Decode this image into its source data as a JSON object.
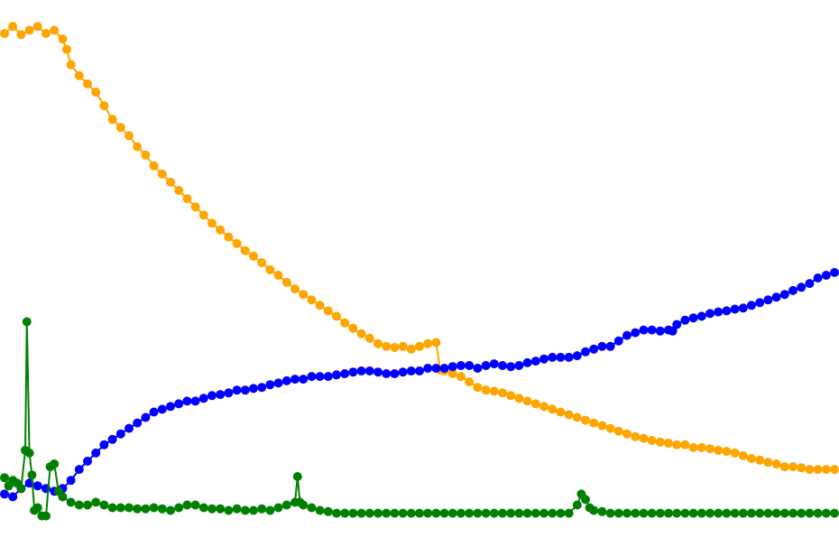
{
  "chart_data": {
    "type": "line",
    "title": "",
    "xlabel": "",
    "ylabel": "",
    "xlim": [
      0,
      100
    ],
    "ylim": [
      0,
      100
    ],
    "grid": false,
    "legend": "none",
    "marker": "circle",
    "series": [
      {
        "color": "#ffa500",
        "values": [
          [
            0,
            94.7
          ],
          [
            1,
            96.0
          ],
          [
            2,
            94.5
          ],
          [
            3,
            95.3
          ],
          [
            4,
            96.0
          ],
          [
            5,
            94.7
          ],
          [
            6,
            95.3
          ],
          [
            7,
            93.7
          ],
          [
            7.5,
            91.8
          ],
          [
            8,
            89.0
          ],
          [
            9,
            87.0
          ],
          [
            10,
            85.5
          ],
          [
            11,
            84.0
          ],
          [
            12,
            81.5
          ],
          [
            13,
            79.0
          ],
          [
            14,
            77.5
          ],
          [
            15,
            76.0
          ],
          [
            16,
            74.0
          ],
          [
            17,
            72.5
          ],
          [
            18,
            70.5
          ],
          [
            19,
            69.0
          ],
          [
            20,
            67.5
          ],
          [
            21,
            66.0
          ],
          [
            22,
            64.5
          ],
          [
            23,
            63.0
          ],
          [
            24,
            61.5
          ],
          [
            25,
            60.0
          ],
          [
            26,
            58.8
          ],
          [
            27,
            57.5
          ],
          [
            28,
            56.3
          ],
          [
            29,
            55.0
          ],
          [
            30,
            54.0
          ],
          [
            31,
            52.8
          ],
          [
            32,
            51.5
          ],
          [
            33,
            50.5
          ],
          [
            34,
            49.2
          ],
          [
            35,
            48.0
          ],
          [
            36,
            47.0
          ],
          [
            37,
            46.0
          ],
          [
            38,
            45.0
          ],
          [
            39,
            44.0
          ],
          [
            40,
            43.0
          ],
          [
            41,
            41.8
          ],
          [
            42,
            40.8
          ],
          [
            43,
            39.8
          ],
          [
            44,
            39.0
          ],
          [
            45,
            38.0
          ],
          [
            46,
            37.5
          ],
          [
            47,
            37.3
          ],
          [
            48,
            37.5
          ],
          [
            49,
            37.0
          ],
          [
            50,
            37.5
          ],
          [
            51,
            38.0
          ],
          [
            52,
            38.2
          ],
          [
            52.5,
            33.2
          ],
          [
            53,
            33.0
          ],
          [
            54,
            32.5
          ],
          [
            55,
            32.0
          ],
          [
            56,
            31.0
          ],
          [
            57,
            30.0
          ],
          [
            58,
            29.5
          ],
          [
            59,
            29.3
          ],
          [
            60,
            29.0
          ],
          [
            61,
            28.5
          ],
          [
            62,
            28.0
          ],
          [
            63,
            27.5
          ],
          [
            64,
            27.0
          ],
          [
            65,
            26.5
          ],
          [
            66,
            26.0
          ],
          [
            67,
            25.5
          ],
          [
            68,
            25.0
          ],
          [
            69,
            24.5
          ],
          [
            70,
            24.0
          ],
          [
            71,
            23.5
          ],
          [
            72,
            23.0
          ],
          [
            73,
            22.5
          ],
          [
            74,
            22.0
          ],
          [
            75,
            21.5
          ],
          [
            76,
            21.0
          ],
          [
            77,
            20.7
          ],
          [
            78,
            20.3
          ],
          [
            79,
            20.0
          ],
          [
            80,
            19.8
          ],
          [
            81,
            19.5
          ],
          [
            82,
            19.5
          ],
          [
            83,
            19.0
          ],
          [
            84,
            19.0
          ],
          [
            85,
            18.8
          ],
          [
            86,
            18.5
          ],
          [
            87,
            18.3
          ],
          [
            88,
            18.0
          ],
          [
            89,
            17.5
          ],
          [
            90,
            17.0
          ],
          [
            91,
            16.7
          ],
          [
            92,
            16.3
          ],
          [
            93,
            16.0
          ],
          [
            94,
            15.5
          ],
          [
            95,
            15.5
          ],
          [
            96,
            15.3
          ],
          [
            97,
            15.0
          ],
          [
            98,
            15.0
          ],
          [
            99,
            15.0
          ],
          [
            100,
            15.0
          ]
        ]
      },
      {
        "color": "#0000ff",
        "values": [
          [
            0,
            10.5
          ],
          [
            1,
            10.0
          ],
          [
            2,
            11.5
          ],
          [
            3,
            12.5
          ],
          [
            4,
            12.0
          ],
          [
            5,
            11.5
          ],
          [
            6,
            11.0
          ],
          [
            7,
            11.5
          ],
          [
            8,
            13.0
          ],
          [
            9,
            15.0
          ],
          [
            10,
            16.5
          ],
          [
            11,
            18.0
          ],
          [
            12,
            19.5
          ],
          [
            13,
            20.5
          ],
          [
            14,
            21.5
          ],
          [
            15,
            22.5
          ],
          [
            16,
            23.5
          ],
          [
            17,
            24.5
          ],
          [
            18,
            25.5
          ],
          [
            19,
            26.0
          ],
          [
            20,
            26.5
          ],
          [
            21,
            27.0
          ],
          [
            22,
            27.5
          ],
          [
            23,
            27.5
          ],
          [
            24,
            28.0
          ],
          [
            25,
            28.5
          ],
          [
            26,
            28.7
          ],
          [
            27,
            29.0
          ],
          [
            28,
            29.5
          ],
          [
            29,
            29.5
          ],
          [
            30,
            29.8
          ],
          [
            31,
            30.0
          ],
          [
            32,
            30.5
          ],
          [
            33,
            30.8
          ],
          [
            34,
            31.2
          ],
          [
            35,
            31.5
          ],
          [
            36,
            31.5
          ],
          [
            37,
            32.0
          ],
          [
            38,
            32.0
          ],
          [
            39,
            32.0
          ],
          [
            40,
            32.3
          ],
          [
            41,
            32.5
          ],
          [
            42,
            32.8
          ],
          [
            43,
            33.0
          ],
          [
            44,
            33.0
          ],
          [
            45,
            32.8
          ],
          [
            46,
            32.5
          ],
          [
            47,
            32.5
          ],
          [
            48,
            32.8
          ],
          [
            49,
            33.0
          ],
          [
            50,
            33.0
          ],
          [
            51,
            33.5
          ],
          [
            52,
            33.5
          ],
          [
            53,
            33.5
          ],
          [
            54,
            33.8
          ],
          [
            55,
            34.0
          ],
          [
            56,
            34.0
          ],
          [
            57,
            33.5
          ],
          [
            58,
            34.0
          ],
          [
            59,
            34.3
          ],
          [
            60,
            34.0
          ],
          [
            61,
            33.8
          ],
          [
            62,
            34.0
          ],
          [
            63,
            34.5
          ],
          [
            64,
            34.8
          ],
          [
            65,
            35.2
          ],
          [
            66,
            35.5
          ],
          [
            67,
            35.5
          ],
          [
            68,
            35.5
          ],
          [
            69,
            35.8
          ],
          [
            70,
            36.5
          ],
          [
            71,
            37.0
          ],
          [
            72,
            37.5
          ],
          [
            73,
            37.5
          ],
          [
            74,
            38.5
          ],
          [
            75,
            39.5
          ],
          [
            76,
            40.0
          ],
          [
            77,
            40.5
          ],
          [
            78,
            40.5
          ],
          [
            79,
            40.3
          ],
          [
            80,
            40.5
          ],
          [
            80.5,
            40.3
          ],
          [
            81,
            41.5
          ],
          [
            82,
            42.3
          ],
          [
            83,
            42.7
          ],
          [
            84,
            43.0
          ],
          [
            85,
            43.5
          ],
          [
            86,
            43.8
          ],
          [
            87,
            44.0
          ],
          [
            88,
            44.3
          ],
          [
            89,
            44.5
          ],
          [
            90,
            45.0
          ],
          [
            91,
            45.5
          ],
          [
            92,
            46.0
          ],
          [
            93,
            46.5
          ],
          [
            94,
            47.0
          ],
          [
            95,
            47.7
          ],
          [
            96,
            48.3
          ],
          [
            97,
            49.0
          ],
          [
            98,
            50.0
          ],
          [
            99,
            50.5
          ],
          [
            100,
            51.0
          ]
        ]
      },
      {
        "color": "#008000",
        "values": [
          [
            0,
            13.5
          ],
          [
            0.5,
            12.0
          ],
          [
            1,
            13.0
          ],
          [
            1.5,
            12.5
          ],
          [
            2,
            11.5
          ],
          [
            2.5,
            18.5
          ],
          [
            2.7,
            42.0
          ],
          [
            3,
            18.0
          ],
          [
            3.3,
            14.0
          ],
          [
            3.6,
            7.5
          ],
          [
            4,
            8.0
          ],
          [
            4.5,
            6.5
          ],
          [
            5,
            6.5
          ],
          [
            5.5,
            15.5
          ],
          [
            6,
            16.0
          ],
          [
            6.5,
            11.0
          ],
          [
            7,
            10.0
          ],
          [
            8,
            9.0
          ],
          [
            9,
            8.5
          ],
          [
            10,
            8.5
          ],
          [
            11,
            9.0
          ],
          [
            12,
            8.5
          ],
          [
            13,
            8.0
          ],
          [
            14,
            8.0
          ],
          [
            15,
            8.0
          ],
          [
            16,
            7.8
          ],
          [
            17,
            7.8
          ],
          [
            18,
            8.0
          ],
          [
            19,
            7.8
          ],
          [
            20,
            7.5
          ],
          [
            21,
            8.0
          ],
          [
            22,
            8.5
          ],
          [
            23,
            8.5
          ],
          [
            24,
            8.0
          ],
          [
            25,
            7.8
          ],
          [
            26,
            7.8
          ],
          [
            27,
            7.5
          ],
          [
            28,
            7.8
          ],
          [
            29,
            7.5
          ],
          [
            30,
            7.5
          ],
          [
            31,
            7.8
          ],
          [
            32,
            7.5
          ],
          [
            33,
            8.0
          ],
          [
            34,
            8.5
          ],
          [
            35,
            9.0
          ],
          [
            35.3,
            13.7
          ],
          [
            35.6,
            9.0
          ],
          [
            36,
            8.5
          ],
          [
            37,
            8.0
          ],
          [
            38,
            7.5
          ],
          [
            39,
            7.3
          ],
          [
            40,
            7.0
          ],
          [
            41,
            7.0
          ],
          [
            42,
            7.0
          ],
          [
            43,
            7.0
          ],
          [
            44,
            7.0
          ],
          [
            45,
            7.0
          ],
          [
            46,
            7.0
          ],
          [
            47,
            7.0
          ],
          [
            48,
            7.0
          ],
          [
            49,
            7.0
          ],
          [
            50,
            7.0
          ],
          [
            51,
            7.0
          ],
          [
            52,
            7.0
          ],
          [
            53,
            7.0
          ],
          [
            54,
            7.0
          ],
          [
            55,
            7.0
          ],
          [
            56,
            7.0
          ],
          [
            57,
            7.0
          ],
          [
            58,
            7.0
          ],
          [
            59,
            7.0
          ],
          [
            60,
            7.0
          ],
          [
            61,
            7.0
          ],
          [
            62,
            7.0
          ],
          [
            63,
            7.0
          ],
          [
            64,
            7.0
          ],
          [
            65,
            7.0
          ],
          [
            66,
            7.0
          ],
          [
            67,
            7.0
          ],
          [
            68,
            7.0
          ],
          [
            69,
            8.5
          ],
          [
            69.5,
            10.5
          ],
          [
            70,
            9.5
          ],
          [
            70.5,
            8.0
          ],
          [
            71,
            7.5
          ],
          [
            72,
            7.3
          ],
          [
            73,
            7.0
          ],
          [
            74,
            7.0
          ],
          [
            75,
            7.0
          ],
          [
            76,
            7.0
          ],
          [
            77,
            7.0
          ],
          [
            78,
            7.0
          ],
          [
            79,
            7.0
          ],
          [
            80,
            7.0
          ],
          [
            81,
            7.0
          ],
          [
            82,
            7.0
          ],
          [
            83,
            7.0
          ],
          [
            84,
            7.0
          ],
          [
            85,
            7.0
          ],
          [
            86,
            7.0
          ],
          [
            87,
            7.0
          ],
          [
            88,
            7.0
          ],
          [
            89,
            7.0
          ],
          [
            90,
            7.0
          ],
          [
            91,
            7.0
          ],
          [
            92,
            7.0
          ],
          [
            93,
            7.0
          ],
          [
            94,
            7.0
          ],
          [
            95,
            7.0
          ],
          [
            96,
            7.0
          ],
          [
            97,
            7.0
          ],
          [
            98,
            7.0
          ],
          [
            99,
            7.0
          ],
          [
            100,
            7.0
          ]
        ]
      }
    ]
  }
}
